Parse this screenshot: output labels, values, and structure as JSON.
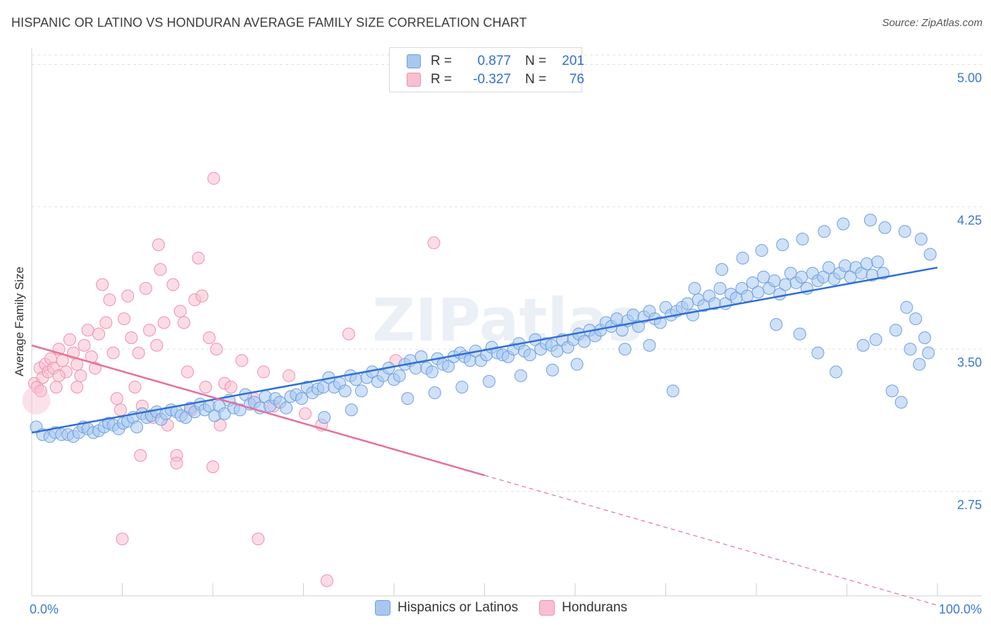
{
  "header": {
    "title": "HISPANIC OR LATINO VS HONDURAN AVERAGE FAMILY SIZE CORRELATION CHART",
    "source": "Source: ZipAtlas.com"
  },
  "legend": {
    "rows": [
      {
        "r_label": "R =",
        "r_value": "0.877",
        "n_label": "N =",
        "n_value": "201"
      },
      {
        "r_label": "R =",
        "r_value": "-0.327",
        "n_label": "N =",
        "n_value": "76"
      }
    ]
  },
  "bottom_legend": {
    "items": [
      {
        "label": "Hispanics or Latinos"
      },
      {
        "label": "Hondurans"
      }
    ]
  },
  "chart_data": {
    "type": "scatter",
    "title": "HISPANIC OR LATINO VS HONDURAN AVERAGE FAMILY SIZE CORRELATION CHART",
    "ylabel": "Average Family Size",
    "xlabel": "",
    "xlim": [
      0,
      100
    ],
    "ylim": [
      2.2,
      5.05
    ],
    "x_tick_labels": [
      "0.0%",
      "100.0%"
    ],
    "y_ticks": [
      {
        "value": 2.75,
        "label": "2.75"
      },
      {
        "value": 3.5,
        "label": "3.50"
      },
      {
        "value": 4.25,
        "label": "4.25"
      },
      {
        "value": 5.0,
        "label": "5.00"
      }
    ],
    "grid": true,
    "watermark": "ZIPatlas",
    "colors": {
      "blue_fill": "#a8c8f0",
      "blue_stroke": "#6f9fe0",
      "blue_line": "#2f6fd6",
      "pink_fill": "#f7bfd0",
      "pink_stroke": "#ee8fb0",
      "pink_line": "#e8709a",
      "tick_text": "#3a78d4"
    },
    "series": [
      {
        "name": "Hispanics or Latinos",
        "color": "#a8c8f0",
        "trend": {
          "x": [
            0,
            100
          ],
          "y": [
            3.06,
            3.93
          ],
          "dashed_from": null
        },
        "points": [
          [
            0.5,
            3.09
          ],
          [
            1.2,
            3.05
          ],
          [
            2,
            3.04
          ],
          [
            2.6,
            3.06
          ],
          [
            3.3,
            3.05
          ],
          [
            4,
            3.05
          ],
          [
            4.6,
            3.04
          ],
          [
            5.2,
            3.06
          ],
          [
            5.7,
            3.09
          ],
          [
            6.2,
            3.08
          ],
          [
            6.8,
            3.06
          ],
          [
            7.4,
            3.07
          ],
          [
            8,
            3.09
          ],
          [
            8.5,
            3.11
          ],
          [
            9,
            3.1
          ],
          [
            9.6,
            3.08
          ],
          [
            10.1,
            3.11
          ],
          [
            10.6,
            3.12
          ],
          [
            11.2,
            3.14
          ],
          [
            11.6,
            3.09
          ],
          [
            12.2,
            3.16
          ],
          [
            12.7,
            3.14
          ],
          [
            13.2,
            3.15
          ],
          [
            13.8,
            3.17
          ],
          [
            14.3,
            3.13
          ],
          [
            14.8,
            3.16
          ],
          [
            15.4,
            3.18
          ],
          [
            16,
            3.17
          ],
          [
            16.5,
            3.15
          ],
          [
            17,
            3.14
          ],
          [
            17.5,
            3.19
          ],
          [
            18,
            3.17
          ],
          [
            18.6,
            3.21
          ],
          [
            19.1,
            3.18
          ],
          [
            19.6,
            3.2
          ],
          [
            20.2,
            3.15
          ],
          [
            20.7,
            3.2
          ],
          [
            21.3,
            3.16
          ],
          [
            21.8,
            3.23
          ],
          [
            22.3,
            3.19
          ],
          [
            23,
            3.18
          ],
          [
            23.6,
            3.26
          ],
          [
            24.1,
            3.21
          ],
          [
            24.6,
            3.22
          ],
          [
            25.2,
            3.19
          ],
          [
            25.8,
            3.25
          ],
          [
            26.3,
            3.2
          ],
          [
            26.9,
            3.24
          ],
          [
            27.4,
            3.22
          ],
          [
            28.1,
            3.19
          ],
          [
            28.6,
            3.25
          ],
          [
            29.2,
            3.26
          ],
          [
            29.8,
            3.24
          ],
          [
            30.4,
            3.3
          ],
          [
            31,
            3.27
          ],
          [
            31.6,
            3.29
          ],
          [
            32.2,
            3.3
          ],
          [
            32.8,
            3.35
          ],
          [
            33.4,
            3.3
          ],
          [
            34,
            3.32
          ],
          [
            34.6,
            3.28
          ],
          [
            35.2,
            3.36
          ],
          [
            35.8,
            3.34
          ],
          [
            36.4,
            3.28
          ],
          [
            37,
            3.35
          ],
          [
            37.6,
            3.38
          ],
          [
            38.2,
            3.33
          ],
          [
            38.8,
            3.36
          ],
          [
            39.4,
            3.4
          ],
          [
            40,
            3.34
          ],
          [
            40.6,
            3.36
          ],
          [
            41.2,
            3.42
          ],
          [
            41.8,
            3.44
          ],
          [
            42.4,
            3.4
          ],
          [
            43,
            3.46
          ],
          [
            43.6,
            3.4
          ],
          [
            44.2,
            3.38
          ],
          [
            44.8,
            3.45
          ],
          [
            45.4,
            3.42
          ],
          [
            46,
            3.41
          ],
          [
            46.6,
            3.46
          ],
          [
            47.3,
            3.48
          ],
          [
            47.8,
            3.46
          ],
          [
            48.4,
            3.44
          ],
          [
            49,
            3.49
          ],
          [
            49.6,
            3.44
          ],
          [
            50.2,
            3.47
          ],
          [
            50.8,
            3.51
          ],
          [
            51.4,
            3.48
          ],
          [
            52,
            3.47
          ],
          [
            52.6,
            3.46
          ],
          [
            53.2,
            3.5
          ],
          [
            53.8,
            3.53
          ],
          [
            54.4,
            3.49
          ],
          [
            55,
            3.47
          ],
          [
            55.6,
            3.55
          ],
          [
            56.2,
            3.5
          ],
          [
            56.8,
            3.53
          ],
          [
            57.4,
            3.52
          ],
          [
            58,
            3.49
          ],
          [
            58.6,
            3.55
          ],
          [
            59.2,
            3.51
          ],
          [
            59.8,
            3.55
          ],
          [
            60.4,
            3.58
          ],
          [
            61,
            3.54
          ],
          [
            61.6,
            3.6
          ],
          [
            62.2,
            3.57
          ],
          [
            62.8,
            3.6
          ],
          [
            63.4,
            3.64
          ],
          [
            64,
            3.62
          ],
          [
            64.6,
            3.66
          ],
          [
            65.2,
            3.6
          ],
          [
            65.8,
            3.65
          ],
          [
            66.4,
            3.68
          ],
          [
            67,
            3.62
          ],
          [
            67.6,
            3.67
          ],
          [
            68.2,
            3.7
          ],
          [
            68.8,
            3.66
          ],
          [
            69.4,
            3.64
          ],
          [
            70,
            3.72
          ],
          [
            70.6,
            3.68
          ],
          [
            71.2,
            3.7
          ],
          [
            71.8,
            3.72
          ],
          [
            72.4,
            3.74
          ],
          [
            73,
            3.68
          ],
          [
            73.6,
            3.76
          ],
          [
            74.2,
            3.73
          ],
          [
            74.8,
            3.78
          ],
          [
            75.4,
            3.74
          ],
          [
            76,
            3.82
          ],
          [
            76.6,
            3.74
          ],
          [
            77.2,
            3.79
          ],
          [
            77.8,
            3.77
          ],
          [
            78.4,
            3.82
          ],
          [
            79,
            3.78
          ],
          [
            79.6,
            3.85
          ],
          [
            80.2,
            3.8
          ],
          [
            80.8,
            3.88
          ],
          [
            81.4,
            3.82
          ],
          [
            82,
            3.86
          ],
          [
            82.6,
            3.79
          ],
          [
            83.2,
            3.84
          ],
          [
            83.8,
            3.9
          ],
          [
            84.4,
            3.85
          ],
          [
            85,
            3.88
          ],
          [
            85.6,
            3.82
          ],
          [
            86.2,
            3.9
          ],
          [
            86.8,
            3.86
          ],
          [
            87.4,
            3.88
          ],
          [
            88,
            3.93
          ],
          [
            88.6,
            3.87
          ],
          [
            89.2,
            3.9
          ],
          [
            89.8,
            3.94
          ],
          [
            90.4,
            3.88
          ],
          [
            91,
            3.93
          ],
          [
            91.6,
            3.9
          ],
          [
            92.2,
            3.95
          ],
          [
            92.8,
            3.89
          ],
          [
            93.4,
            3.96
          ],
          [
            94,
            3.9
          ],
          [
            95,
            3.28
          ],
          [
            96,
            3.22
          ],
          [
            97,
            3.5
          ],
          [
            98,
            3.42
          ],
          [
            99,
            3.48
          ],
          [
            82.2,
            3.63
          ],
          [
            84.8,
            3.58
          ],
          [
            86.8,
            3.48
          ],
          [
            88.8,
            3.38
          ],
          [
            91.8,
            3.52
          ],
          [
            93.2,
            3.55
          ],
          [
            95.4,
            3.6
          ],
          [
            96.6,
            3.72
          ],
          [
            97.6,
            3.66
          ],
          [
            98.6,
            3.56
          ],
          [
            73.2,
            3.82
          ],
          [
            76.2,
            3.92
          ],
          [
            78.5,
            3.98
          ],
          [
            80.6,
            4.02
          ],
          [
            82.9,
            4.05
          ],
          [
            85.1,
            4.08
          ],
          [
            87.5,
            4.12
          ],
          [
            89.6,
            4.16
          ],
          [
            92.6,
            4.18
          ],
          [
            94.2,
            4.14
          ],
          [
            96.4,
            4.12
          ],
          [
            98.2,
            4.08
          ],
          [
            99.2,
            4.0
          ],
          [
            65.5,
            3.5
          ],
          [
            68.2,
            3.52
          ],
          [
            70.8,
            3.28
          ],
          [
            60.2,
            3.42
          ],
          [
            57.5,
            3.39
          ],
          [
            54,
            3.36
          ],
          [
            50.5,
            3.33
          ],
          [
            47.5,
            3.3
          ],
          [
            44.5,
            3.27
          ],
          [
            41.5,
            3.24
          ],
          [
            35.3,
            3.18
          ],
          [
            32.3,
            3.14
          ]
        ]
      },
      {
        "name": "Hondurans",
        "color": "#f7bfd0",
        "trend": {
          "x": [
            0,
            100
          ],
          "y": [
            3.52,
            2.15
          ],
          "dashed_from": 50
        },
        "points": [
          [
            0.3,
            3.32
          ],
          [
            0.6,
            3.3
          ],
          [
            0.9,
            3.4
          ],
          [
            1.2,
            3.35
          ],
          [
            1.5,
            3.42
          ],
          [
            1.8,
            3.38
          ],
          [
            2.1,
            3.45
          ],
          [
            2.4,
            3.4
          ],
          [
            2.7,
            3.3
          ],
          [
            3,
            3.5
          ],
          [
            3.4,
            3.44
          ],
          [
            3.8,
            3.38
          ],
          [
            4.2,
            3.55
          ],
          [
            4.6,
            3.48
          ],
          [
            5,
            3.42
          ],
          [
            5.4,
            3.36
          ],
          [
            5.8,
            3.52
          ],
          [
            6.2,
            3.6
          ],
          [
            6.6,
            3.46
          ],
          [
            7,
            3.4
          ],
          [
            7.4,
            3.58
          ],
          [
            7.8,
            3.84
          ],
          [
            8.2,
            3.64
          ],
          [
            8.6,
            3.76
          ],
          [
            9,
            3.48
          ],
          [
            9.4,
            3.24
          ],
          [
            9.8,
            3.18
          ],
          [
            10.2,
            3.66
          ],
          [
            10.6,
            3.78
          ],
          [
            11,
            3.56
          ],
          [
            11.4,
            3.3
          ],
          [
            11.8,
            3.48
          ],
          [
            12.2,
            3.2
          ],
          [
            12.6,
            3.82
          ],
          [
            13,
            3.6
          ],
          [
            13.4,
            3.14
          ],
          [
            13.8,
            3.52
          ],
          [
            14.2,
            3.92
          ],
          [
            14.6,
            3.64
          ],
          [
            15,
            3.1
          ],
          [
            15.6,
            3.84
          ],
          [
            16,
            2.94
          ],
          [
            16.4,
            3.7
          ],
          [
            16.8,
            3.64
          ],
          [
            17.2,
            3.38
          ],
          [
            17.6,
            3.18
          ],
          [
            18,
            3.76
          ],
          [
            18.4,
            3.98
          ],
          [
            18.8,
            3.78
          ],
          [
            19.2,
            3.3
          ],
          [
            19.6,
            3.56
          ],
          [
            20,
            2.88
          ],
          [
            20.4,
            3.5
          ],
          [
            20.8,
            3.1
          ],
          [
            21.3,
            3.32
          ],
          [
            22,
            3.3
          ],
          [
            23.2,
            3.44
          ],
          [
            24.5,
            3.24
          ],
          [
            25.6,
            3.38
          ],
          [
            26.7,
            3.2
          ],
          [
            28.4,
            3.36
          ],
          [
            30.2,
            3.16
          ],
          [
            32,
            3.1
          ],
          [
            35,
            3.58
          ],
          [
            40.2,
            3.44
          ],
          [
            44.4,
            4.06
          ],
          [
            10,
            2.5
          ],
          [
            25,
            2.5
          ],
          [
            16,
            2.9
          ],
          [
            12,
            2.94
          ],
          [
            5,
            3.3
          ],
          [
            3,
            3.36
          ],
          [
            1,
            3.28
          ],
          [
            14,
            4.05
          ],
          [
            20.1,
            4.4
          ],
          [
            32.6,
            2.28
          ]
        ]
      }
    ]
  }
}
